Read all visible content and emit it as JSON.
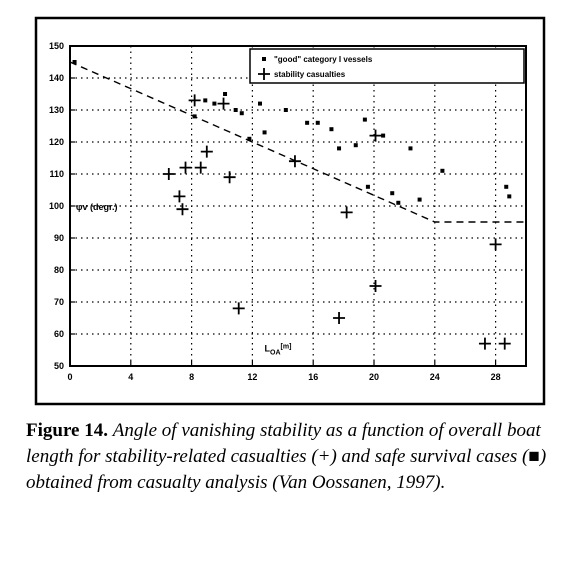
{
  "chart_data": {
    "type": "scatter",
    "xlim": [
      0,
      30
    ],
    "ylim": [
      50,
      150
    ],
    "x_ticks": [
      0,
      4,
      8,
      12,
      16,
      20,
      24,
      28
    ],
    "x_tick_labels": [
      "0",
      "4",
      "8",
      "12",
      "16",
      "20",
      "24",
      "28"
    ],
    "y_ticks": [
      50,
      60,
      70,
      80,
      90,
      100,
      110,
      120,
      130,
      140,
      150
    ],
    "y_tick_labels": [
      "50",
      "60",
      "70",
      "80",
      "90",
      "100",
      "110",
      "120",
      "130",
      "140",
      "150"
    ],
    "xlabel": "L_OA[m]",
    "ylabel": "φ_v(degr.)",
    "grid": true,
    "legend_position": "top-right",
    "series": [
      {
        "name": "\"good\" category I vessels",
        "marker": "square",
        "points": [
          [
            0.3,
            145
          ],
          [
            8.2,
            128
          ],
          [
            8.9,
            133
          ],
          [
            9.5,
            132
          ],
          [
            10.2,
            135
          ],
          [
            10.9,
            130
          ],
          [
            11.3,
            129
          ],
          [
            11.8,
            121
          ],
          [
            12.5,
            132
          ],
          [
            12.8,
            123
          ],
          [
            14.2,
            130
          ],
          [
            15.6,
            126
          ],
          [
            16.3,
            126
          ],
          [
            17.2,
            124
          ],
          [
            17.7,
            118
          ],
          [
            18.8,
            119
          ],
          [
            19.4,
            127
          ],
          [
            19.6,
            106
          ],
          [
            20.6,
            122
          ],
          [
            21.2,
            104
          ],
          [
            21.6,
            101
          ],
          [
            22.4,
            118
          ],
          [
            23.0,
            102
          ],
          [
            24.5,
            111
          ],
          [
            28.7,
            106
          ],
          [
            28.9,
            103
          ]
        ]
      },
      {
        "name": "stability casualties",
        "marker": "plus",
        "points": [
          [
            6.5,
            110
          ],
          [
            7.2,
            103
          ],
          [
            7.4,
            99
          ],
          [
            7.6,
            112
          ],
          [
            8.2,
            133
          ],
          [
            8.6,
            112
          ],
          [
            9.0,
            117
          ],
          [
            10.1,
            132
          ],
          [
            10.5,
            109
          ],
          [
            11.1,
            68
          ],
          [
            14.8,
            114
          ],
          [
            17.7,
            65
          ],
          [
            18.2,
            98
          ],
          [
            20.1,
            122
          ],
          [
            20.1,
            75
          ],
          [
            27.3,
            57
          ],
          [
            28.0,
            88
          ],
          [
            28.6,
            57
          ]
        ]
      },
      {
        "name": "",
        "type": "line",
        "style": "dashed",
        "points": [
          [
            0,
            145
          ],
          [
            24,
            95
          ],
          [
            30,
            95
          ]
        ]
      }
    ]
  },
  "plot_annotations": {
    "ylabel_text": "φv (degr.)",
    "xlabel_main": "L",
    "xlabel_sub": "OA",
    "xlabel_unit": "[m]"
  },
  "caption": {
    "label": "Figure 14.",
    "text": "Angle of vanishing stability as a function of overall boat length for stability-related casualties (+) and safe survival cases (■) obtained from casualty analysis (Van Oossanen, 1997)."
  }
}
